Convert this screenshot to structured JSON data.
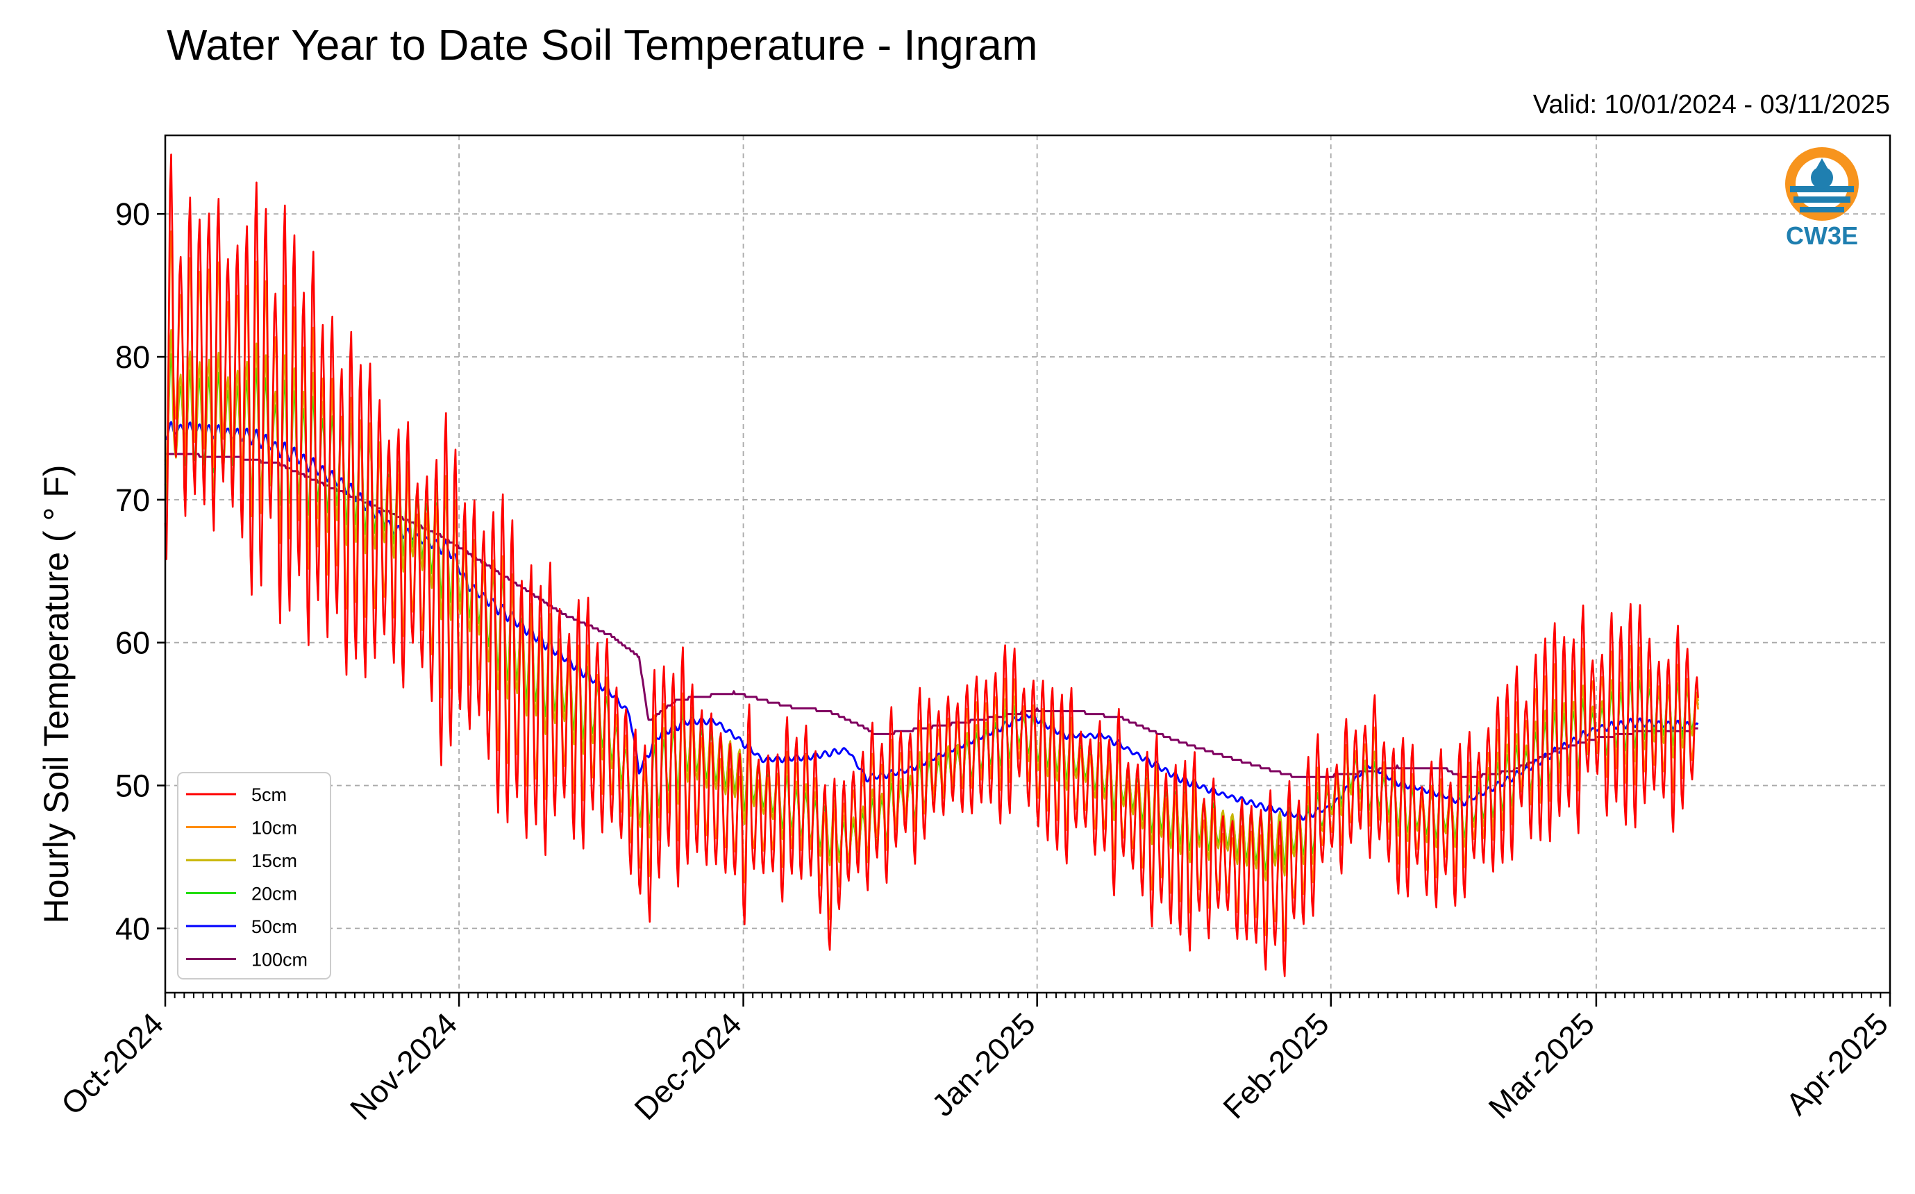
{
  "chart_data": {
    "type": "line",
    "title": "Water Year to Date Soil Temperature - Ingram",
    "subtitle": "Valid: 10/01/2024 - 03/11/2025",
    "xlabel": "",
    "ylabel": "Hourly Soil Temperature ( ° F)",
    "x_tick_labels": [
      "Oct-2024",
      "Nov-2024",
      "Dec-2024",
      "Jan-2025",
      "Feb-2025",
      "Mar-2025",
      "Apr-2025"
    ],
    "y_ticks": [
      40,
      50,
      60,
      70,
      80,
      90
    ],
    "xlim": [
      "2024-10-01",
      "2025-04-01"
    ],
    "ylim": [
      35.5,
      95.5
    ],
    "grid": true,
    "legend_position": "lower-left",
    "logo_text": "CW3E",
    "series": [
      {
        "name": "5cm",
        "color": "#ff0000",
        "amplitude": 1.0,
        "points": [
          [
            "2024-10-01",
            80
          ],
          [
            "2024-10-05",
            80
          ],
          [
            "2024-10-10",
            78
          ],
          [
            "2024-10-15",
            75
          ],
          [
            "2024-10-20",
            70
          ],
          [
            "2024-10-25",
            67
          ],
          [
            "2024-10-30",
            64
          ],
          [
            "2024-11-04",
            61
          ],
          [
            "2024-11-08",
            56
          ],
          [
            "2024-11-12",
            55
          ],
          [
            "2024-11-16",
            54
          ],
          [
            "2024-11-19",
            50
          ],
          [
            "2024-11-20",
            47
          ],
          [
            "2024-11-23",
            52
          ],
          [
            "2024-11-27",
            50
          ],
          [
            "2024-11-30",
            48
          ],
          [
            "2024-12-04",
            48
          ],
          [
            "2024-12-08",
            49
          ],
          [
            "2024-12-10",
            44
          ],
          [
            "2024-12-13",
            48
          ],
          [
            "2024-12-18",
            50
          ],
          [
            "2024-12-22",
            52
          ],
          [
            "2024-12-26",
            53
          ],
          [
            "2024-12-30",
            54
          ],
          [
            "2025-01-03",
            51
          ],
          [
            "2025-01-07",
            50
          ],
          [
            "2025-01-11",
            48
          ],
          [
            "2025-01-15",
            46
          ],
          [
            "2025-01-19",
            45
          ],
          [
            "2025-01-23",
            44
          ],
          [
            "2025-01-27",
            43
          ],
          [
            "2025-01-30",
            47
          ],
          [
            "2025-02-02",
            49
          ],
          [
            "2025-02-05",
            51
          ],
          [
            "2025-02-08",
            48
          ],
          [
            "2025-02-11",
            47
          ],
          [
            "2025-02-14",
            47
          ],
          [
            "2025-02-17",
            49
          ],
          [
            "2025-02-21",
            52
          ],
          [
            "2025-02-25",
            54
          ],
          [
            "2025-03-01",
            55
          ],
          [
            "2025-03-05",
            55
          ],
          [
            "2025-03-08",
            54
          ],
          [
            "2025-03-11",
            54
          ]
        ],
        "swing": [
          [
            "2024-10-01",
            12
          ],
          [
            "2024-10-15",
            12
          ],
          [
            "2024-11-01",
            10
          ],
          [
            "2024-11-15",
            8
          ],
          [
            "2024-12-01",
            7
          ],
          [
            "2024-12-15",
            6
          ],
          [
            "2025-01-01",
            5
          ],
          [
            "2025-01-15",
            6
          ],
          [
            "2025-02-01",
            5
          ],
          [
            "2025-02-15",
            5
          ],
          [
            "2025-03-01",
            7
          ],
          [
            "2025-03-11",
            6
          ]
        ]
      },
      {
        "name": "10cm",
        "color": "#ff8c00",
        "amplitude": 0.62,
        "points": [
          [
            "2024-10-01",
            80
          ],
          [
            "2024-10-05",
            80
          ],
          [
            "2024-10-10",
            78
          ],
          [
            "2024-10-15",
            75
          ],
          [
            "2024-10-20",
            70
          ],
          [
            "2024-10-25",
            67
          ],
          [
            "2024-10-30",
            64
          ],
          [
            "2024-11-04",
            61
          ],
          [
            "2024-11-08",
            56
          ],
          [
            "2024-11-12",
            55
          ],
          [
            "2024-11-16",
            54
          ],
          [
            "2024-11-19",
            50
          ],
          [
            "2024-11-20",
            47
          ],
          [
            "2024-11-23",
            52
          ],
          [
            "2024-11-27",
            50
          ],
          [
            "2024-11-30",
            48
          ],
          [
            "2024-12-04",
            48
          ],
          [
            "2024-12-08",
            49
          ],
          [
            "2024-12-10",
            44
          ],
          [
            "2024-12-13",
            48
          ],
          [
            "2024-12-18",
            50
          ],
          [
            "2024-12-22",
            52
          ],
          [
            "2024-12-26",
            53
          ],
          [
            "2024-12-30",
            54
          ],
          [
            "2025-01-03",
            51
          ],
          [
            "2025-01-07",
            50
          ],
          [
            "2025-01-11",
            48
          ],
          [
            "2025-01-15",
            46
          ],
          [
            "2025-01-19",
            45
          ],
          [
            "2025-01-23",
            44
          ],
          [
            "2025-01-27",
            43
          ],
          [
            "2025-01-30",
            47
          ],
          [
            "2025-02-02",
            49
          ],
          [
            "2025-02-05",
            51
          ],
          [
            "2025-02-08",
            48
          ],
          [
            "2025-02-11",
            47
          ],
          [
            "2025-02-14",
            47
          ],
          [
            "2025-02-17",
            49
          ],
          [
            "2025-02-21",
            52
          ],
          [
            "2025-02-25",
            54
          ],
          [
            "2025-03-01",
            55
          ],
          [
            "2025-03-05",
            55
          ],
          [
            "2025-03-08",
            54
          ],
          [
            "2025-03-11",
            54
          ]
        ]
      },
      {
        "name": "15cm",
        "color": "#c8b400",
        "amplitude": 0.42,
        "points": [
          [
            "2024-10-01",
            76
          ],
          [
            "2024-10-10",
            75
          ],
          [
            "2024-10-20",
            72
          ],
          [
            "2024-10-30",
            67
          ],
          [
            "2024-11-08",
            59
          ],
          [
            "2024-11-16",
            55
          ],
          [
            "2024-11-20",
            49
          ],
          [
            "2024-11-25",
            53
          ],
          [
            "2024-12-05",
            49
          ],
          [
            "2024-12-12",
            46
          ],
          [
            "2024-12-20",
            50
          ],
          [
            "2024-12-30",
            54
          ],
          [
            "2025-01-05",
            52
          ],
          [
            "2025-01-15",
            48
          ],
          [
            "2025-01-25",
            46
          ],
          [
            "2025-01-30",
            47
          ],
          [
            "2025-02-03",
            51
          ],
          [
            "2025-02-10",
            48
          ],
          [
            "2025-02-15",
            48
          ],
          [
            "2025-02-25",
            53
          ],
          [
            "2025-03-05",
            55
          ],
          [
            "2025-03-11",
            55
          ]
        ]
      },
      {
        "name": "20cm",
        "color": "#22dd00",
        "amplitude": 0.3,
        "points": [
          [
            "2024-10-01",
            76
          ],
          [
            "2024-10-10",
            75
          ],
          [
            "2024-10-20",
            72
          ],
          [
            "2024-10-30",
            67
          ],
          [
            "2024-11-08",
            59
          ],
          [
            "2024-11-16",
            55
          ],
          [
            "2024-11-20",
            49
          ],
          [
            "2024-11-25",
            53
          ],
          [
            "2024-12-05",
            49
          ],
          [
            "2024-12-12",
            46
          ],
          [
            "2024-12-20",
            50
          ],
          [
            "2024-12-30",
            54
          ],
          [
            "2025-01-05",
            52
          ],
          [
            "2025-01-15",
            48
          ],
          [
            "2025-01-25",
            46
          ],
          [
            "2025-01-30",
            47
          ],
          [
            "2025-02-03",
            51
          ],
          [
            "2025-02-10",
            48
          ],
          [
            "2025-02-15",
            48
          ],
          [
            "2025-02-25",
            53
          ],
          [
            "2025-03-05",
            55
          ],
          [
            "2025-03-11",
            55
          ]
        ]
      },
      {
        "name": "50cm",
        "color": "#0000ff",
        "amplitude": 0.04,
        "points": [
          [
            "2024-10-01",
            74.8
          ],
          [
            "2024-10-03",
            75
          ],
          [
            "2024-10-10",
            74.5
          ],
          [
            "2024-10-15",
            73
          ],
          [
            "2024-10-20",
            71
          ],
          [
            "2024-10-25",
            68
          ],
          [
            "2024-10-31",
            66.5
          ],
          [
            "2024-11-02",
            64
          ],
          [
            "2024-11-06",
            62
          ],
          [
            "2024-11-10",
            60
          ],
          [
            "2024-11-14",
            58
          ],
          [
            "2024-11-17",
            56.5
          ],
          [
            "2024-11-19",
            55
          ],
          [
            "2024-11-20",
            51
          ],
          [
            "2024-11-22",
            53.5
          ],
          [
            "2024-11-25",
            54.5
          ],
          [
            "2024-11-28",
            54.5
          ],
          [
            "2024-12-01",
            53
          ],
          [
            "2024-12-03",
            51.8
          ],
          [
            "2024-12-08",
            52
          ],
          [
            "2024-12-12",
            52.5
          ],
          [
            "2024-12-14",
            50.5
          ],
          [
            "2024-12-18",
            51
          ],
          [
            "2024-12-23",
            52.5
          ],
          [
            "2024-12-28",
            54
          ],
          [
            "2024-12-31",
            55
          ],
          [
            "2025-01-04",
            53.5
          ],
          [
            "2025-01-08",
            53.5
          ],
          [
            "2025-01-12",
            52
          ],
          [
            "2025-01-16",
            50.5
          ],
          [
            "2025-01-20",
            49.5
          ],
          [
            "2025-01-25",
            48.5
          ],
          [
            "2025-01-29",
            47.8
          ],
          [
            "2025-02-01",
            48.5
          ],
          [
            "2025-02-05",
            51.5
          ],
          [
            "2025-02-08",
            50.2
          ],
          [
            "2025-02-12",
            49.5
          ],
          [
            "2025-02-15",
            48.8
          ],
          [
            "2025-02-20",
            50.5
          ],
          [
            "2025-02-25",
            52.5
          ],
          [
            "2025-03-01",
            54
          ],
          [
            "2025-03-05",
            54.4
          ],
          [
            "2025-03-11",
            54.2
          ]
        ]
      },
      {
        "name": "100cm",
        "color": "#800060",
        "amplitude": 0,
        "points": [
          [
            "2024-10-01",
            73.2
          ],
          [
            "2024-10-08",
            73
          ],
          [
            "2024-10-13",
            72.5
          ],
          [
            "2024-10-18",
            71
          ],
          [
            "2024-10-25",
            69
          ],
          [
            "2024-10-30",
            67.5
          ],
          [
            "2024-11-05",
            65
          ],
          [
            "2024-11-12",
            62
          ],
          [
            "2024-11-17",
            60.5
          ],
          [
            "2024-11-20",
            59
          ],
          [
            "2024-11-21",
            54.5
          ],
          [
            "2024-11-24",
            56
          ],
          [
            "2024-11-30",
            56.5
          ],
          [
            "2024-12-06",
            55.5
          ],
          [
            "2024-12-10",
            55.2
          ],
          [
            "2024-12-14",
            54
          ],
          [
            "2024-12-15",
            53.5
          ],
          [
            "2024-12-20",
            54
          ],
          [
            "2024-12-26",
            54.6
          ],
          [
            "2025-01-01",
            55.3
          ],
          [
            "2025-01-05",
            55.2
          ],
          [
            "2025-01-10",
            54.7
          ],
          [
            "2025-01-15",
            53.3
          ],
          [
            "2025-01-20",
            52.2
          ],
          [
            "2025-01-25",
            51.2
          ],
          [
            "2025-01-29",
            50.5
          ],
          [
            "2025-02-03",
            50.8
          ],
          [
            "2025-02-08",
            51.3
          ],
          [
            "2025-02-13",
            51.2
          ],
          [
            "2025-02-15",
            50.5
          ],
          [
            "2025-02-20",
            51
          ],
          [
            "2025-02-25",
            52.5
          ],
          [
            "2025-03-01",
            53.3
          ],
          [
            "2025-03-06",
            53.8
          ],
          [
            "2025-03-11",
            53.9
          ]
        ]
      }
    ]
  }
}
